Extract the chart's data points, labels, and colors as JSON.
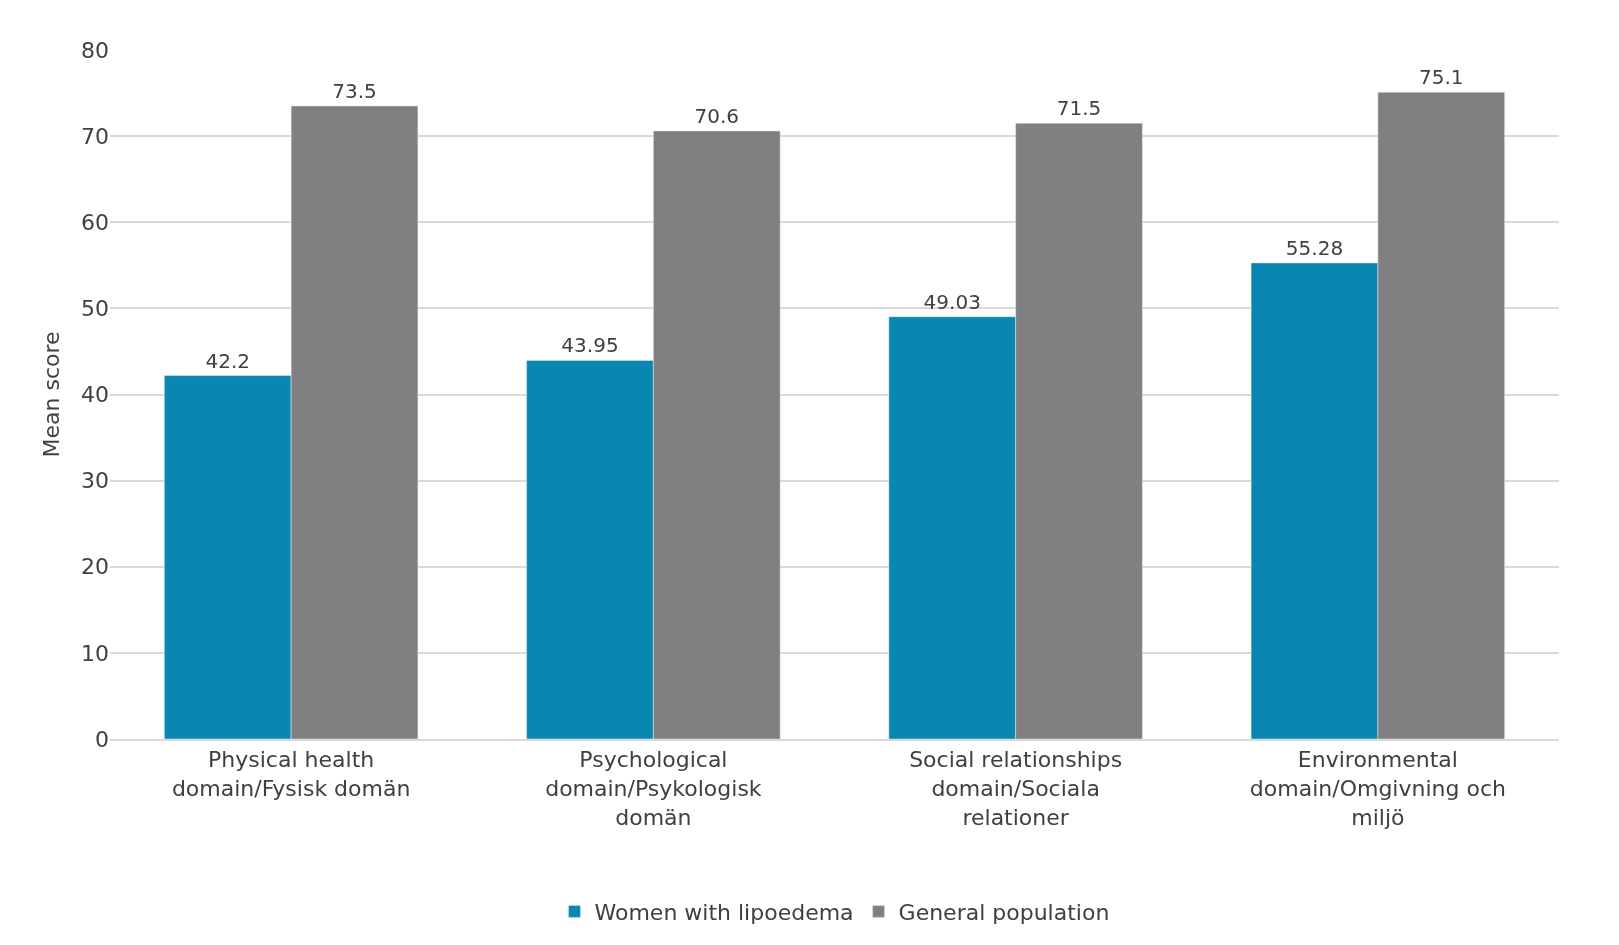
{
  "chart_data": {
    "type": "bar",
    "ylabel": "Mean score",
    "categories": [
      "Physical health domain/Fysisk domän",
      "Psychological domain/Psykologisk domän",
      "Social relationships domain/Sociala relationer",
      "Environmental domain/Omgivning och miljö"
    ],
    "series": [
      {
        "name": "Women with lipoedema",
        "color": "#0a87b0",
        "values": [
          42.2,
          43.95,
          49.03,
          55.28
        ]
      },
      {
        "name": "General population",
        "color": "#808080",
        "values": [
          73.5,
          70.6,
          71.5,
          75.1
        ]
      }
    ],
    "ylim": [
      0,
      80
    ],
    "yticks": [
      0,
      10,
      20,
      30,
      40,
      50,
      60,
      70,
      80
    ],
    "grid": "y",
    "legend": "bottom",
    "data_labels": true
  }
}
